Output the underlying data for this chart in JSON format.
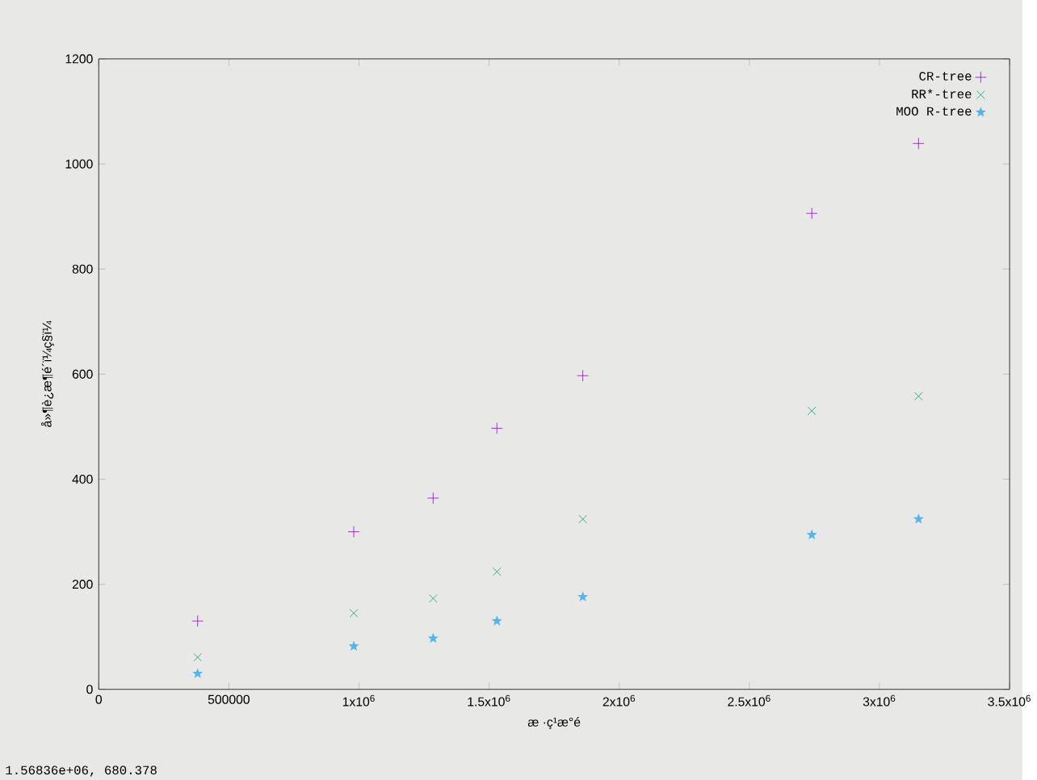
{
  "chart_data": {
    "type": "scatter",
    "xlabel": "æ ·ç¹æ°é",
    "ylabel": "å»¶è¿æ¶é´ï¼ç§ï¼",
    "x": [
      380000,
      980000,
      1285000,
      1530000,
      1860000,
      2740000,
      3150000
    ],
    "series": [
      {
        "name": "CR-tree",
        "color": "#9400d3",
        "marker": "plus",
        "values": [
          130,
          300,
          364,
          497,
          597,
          906,
          1039
        ]
      },
      {
        "name": "RR*-tree",
        "color": "#009e73",
        "marker": "cross",
        "values": [
          61,
          145,
          173,
          224,
          324,
          530,
          558
        ]
      },
      {
        "name": "MOO R-tree",
        "color": "#56b4e9",
        "marker": "star",
        "values": [
          30,
          82,
          97,
          130,
          176,
          294,
          324
        ]
      }
    ],
    "xlim": [
      0,
      3500000
    ],
    "ylim": [
      0,
      1200
    ],
    "xticks": [
      0,
      500000,
      {
        "value": 1000000,
        "label": "1x10$^{6}$"
      },
      {
        "value": 1500000,
        "label": "1.5x10$^{6}$"
      },
      {
        "value": 2000000,
        "label": "2x10$^{6}$"
      },
      {
        "value": 2500000,
        "label": "2.5x10$^{6}$"
      },
      {
        "value": 3000000,
        "label": "3x10$^{6}$"
      },
      {
        "value": 3500000,
        "label": "3.5x10$^{6}$"
      }
    ],
    "yticks": [
      0,
      200,
      400,
      600,
      800,
      1000,
      1200
    ],
    "legend": "top right",
    "grid": false,
    "annotations": [
      "1.56836e+06, 680.378"
    ]
  }
}
